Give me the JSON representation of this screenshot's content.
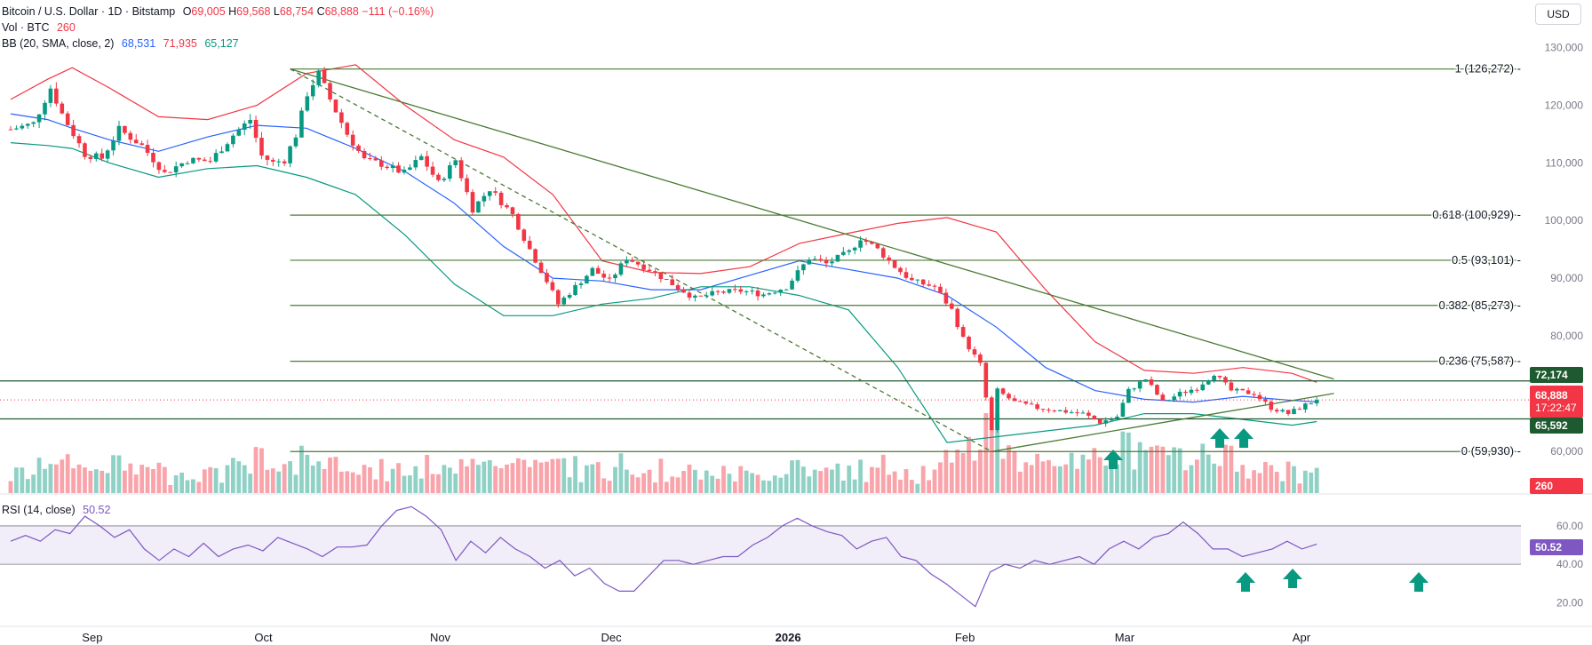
{
  "header": {
    "symbol": "Bitcoin / U.S. Dollar · 1D · Bitstamp",
    "o_label": "O",
    "o": "69,005",
    "h_label": "H",
    "h": "69,568",
    "l_label": "L",
    "l": "68,754",
    "c_label": "C",
    "c": "68,888",
    "change": "−111 (−0.16%)",
    "vol_label": "Vol · BTC",
    "vol": "260",
    "bb_label": "BB (20, SMA, close, 2)",
    "bb_basis": "68,531",
    "bb_upper": "71,935",
    "bb_lower": "65,127",
    "rsi_label": "RSI (14, close)",
    "rsi": "50.52"
  },
  "currency_button": "USD",
  "price_tags": {
    "resistance": "72,174",
    "last": "68,888",
    "countdown": "17:22:47",
    "support": "65,592",
    "volume": "260",
    "rsi": "50.52"
  },
  "colors": {
    "up": "#089981",
    "down": "#f23645",
    "basis": "#2962ff",
    "band": "#f23645",
    "lower": "#089981",
    "fib": "#4c7a34",
    "rsi": "#7e57c2",
    "support_tag": "#1e5a2f"
  },
  "chart_data": {
    "type": "candlestick",
    "price_axis": {
      "ticks": [
        60000,
        70000,
        80000,
        90000,
        100000,
        110000,
        120000,
        130000
      ],
      "tick_labels": [
        "60,000",
        "70,000",
        "80,000",
        "90,000",
        "100,000",
        "110,000",
        "120,000",
        "130,000"
      ],
      "range": [
        55500,
        133000
      ]
    },
    "time_axis": {
      "labels": [
        "Sep",
        "Oct",
        "Nov",
        "Dec",
        "2026",
        "Feb",
        "Mar",
        "Apr"
      ]
    },
    "fib_levels": [
      {
        "label": "1 (126,272)",
        "value": 126272
      },
      {
        "label": "0.618 (100,929)",
        "value": 100929
      },
      {
        "label": "0.5 (93,101)",
        "value": 93101
      },
      {
        "label": "0.382 (85,273)",
        "value": 85273
      },
      {
        "label": "0.236 (75,587)",
        "value": 75587
      },
      {
        "label": "0 (59,930)",
        "value": 59930
      }
    ],
    "horizontal_levels": [
      72174,
      65592
    ],
    "last_price": 68888,
    "close_path": [
      [
        "Aug 18",
        115800
      ],
      [
        "Aug 22",
        116800
      ],
      [
        "Aug 25",
        123000
      ],
      [
        "Aug 27",
        118500
      ],
      [
        "Aug 31",
        111500
      ],
      [
        "Sep 3",
        110800
      ],
      [
        "Sep 6",
        115800
      ],
      [
        "Sep 10",
        113000
      ],
      [
        "Sep 14",
        108200
      ],
      [
        "Sep 18",
        110500
      ],
      [
        "Sep 22",
        110300
      ],
      [
        "Sep 26",
        114800
      ],
      [
        "Sep 29",
        117500
      ],
      [
        "Oct 1",
        111200
      ],
      [
        "Oct 3",
        110000
      ],
      [
        "Oct 5",
        110500
      ],
      [
        "Oct 7",
        114800
      ],
      [
        "Oct 9",
        122000
      ],
      [
        "Oct 11",
        125500
      ],
      [
        "Oct 13",
        121000
      ],
      [
        "Oct 16",
        115000
      ],
      [
        "Oct 19",
        110500
      ],
      [
        "Oct 22",
        109800
      ],
      [
        "Oct 26",
        108200
      ],
      [
        "Oct 29",
        111000
      ],
      [
        "Nov 1",
        106500
      ],
      [
        "Nov 4",
        110500
      ],
      [
        "Nov 7",
        102000
      ],
      [
        "Nov 10",
        105500
      ],
      [
        "Nov 14",
        101000
      ],
      [
        "Nov 17",
        95000
      ],
      [
        "Nov 20",
        89500
      ],
      [
        "Nov 22",
        85500
      ],
      [
        "Nov 25",
        88500
      ],
      [
        "Nov 28",
        91500
      ],
      [
        "Dec 1",
        89500
      ],
      [
        "Dec 4",
        93500
      ],
      [
        "Dec 8",
        91500
      ],
      [
        "Dec 12",
        89000
      ],
      [
        "Dec 16",
        86500
      ],
      [
        "Dec 20",
        87500
      ],
      [
        "Dec 24",
        87800
      ],
      [
        "Dec 28",
        87200
      ],
      [
        "Jan 1",
        88500
      ],
      [
        "Jan 5",
        93500
      ],
      [
        "Jan 8",
        92500
      ],
      [
        "Jan 12",
        94500
      ],
      [
        "Jan 14",
        97000
      ],
      [
        "Jan 17",
        95000
      ],
      [
        "Jan 20",
        92000
      ],
      [
        "Jan 23",
        89500
      ],
      [
        "Jan 27",
        88500
      ],
      [
        "Jan 30",
        84500
      ],
      [
        "Feb 1",
        79500
      ],
      [
        "Feb 4",
        75000
      ],
      [
        "Feb 6",
        63500
      ],
      [
        "Feb 7",
        70500
      ],
      [
        "Feb 10",
        68500
      ],
      [
        "Feb 14",
        67500
      ],
      [
        "Feb 18",
        67000
      ],
      [
        "Feb 22",
        66500
      ],
      [
        "Feb 25",
        65000
      ],
      [
        "Feb 28",
        66000
      ],
      [
        "Mar 2",
        70500
      ],
      [
        "Mar 5",
        72500
      ],
      [
        "Mar 8",
        68500
      ],
      [
        "Mar 11",
        70000
      ],
      [
        "Mar 14",
        71000
      ],
      [
        "Mar 17",
        73500
      ],
      [
        "Mar 20",
        70500
      ],
      [
        "Mar 24",
        70000
      ],
      [
        "Mar 27",
        67500
      ],
      [
        "Mar 30",
        66500
      ],
      [
        "Apr 2",
        68000
      ],
      [
        "Apr 4",
        68888
      ]
    ],
    "bollinger": {
      "upper": [
        [
          0,
          121000
        ],
        [
          15,
          124500
        ],
        [
          25,
          126500
        ],
        [
          40,
          123000
        ],
        [
          60,
          118000
        ],
        [
          80,
          117500
        ],
        [
          100,
          120000
        ],
        [
          120,
          125500
        ],
        [
          140,
          127000
        ],
        [
          160,
          120000
        ],
        [
          180,
          114000
        ],
        [
          200,
          111000
        ],
        [
          220,
          104500
        ],
        [
          240,
          93000
        ],
        [
          260,
          91000
        ],
        [
          280,
          90800
        ],
        [
          300,
          92000
        ],
        [
          320,
          96000
        ],
        [
          340,
          97800
        ],
        [
          360,
          99500
        ],
        [
          380,
          100500
        ],
        [
          400,
          98000
        ],
        [
          420,
          88000
        ],
        [
          440,
          79000
        ],
        [
          460,
          74000
        ],
        [
          480,
          73500
        ],
        [
          500,
          74500
        ],
        [
          520,
          73500
        ],
        [
          530,
          71935
        ]
      ],
      "basis": [
        [
          0,
          118500
        ],
        [
          15,
          117500
        ],
        [
          25,
          116000
        ],
        [
          40,
          114000
        ],
        [
          60,
          112000
        ],
        [
          80,
          114500
        ],
        [
          100,
          116500
        ],
        [
          120,
          116000
        ],
        [
          140,
          112500
        ],
        [
          160,
          108500
        ],
        [
          180,
          103000
        ],
        [
          200,
          95500
        ],
        [
          220,
          90000
        ],
        [
          240,
          89500
        ],
        [
          260,
          88000
        ],
        [
          280,
          88000
        ],
        [
          300,
          90500
        ],
        [
          320,
          93000
        ],
        [
          340,
          91500
        ],
        [
          360,
          90000
        ],
        [
          380,
          87000
        ],
        [
          400,
          81500
        ],
        [
          420,
          74500
        ],
        [
          440,
          70500
        ],
        [
          460,
          69000
        ],
        [
          480,
          68500
        ],
        [
          500,
          69500
        ],
        [
          520,
          68800
        ],
        [
          530,
          68531
        ]
      ],
      "lower": [
        [
          0,
          113500
        ],
        [
          15,
          113000
        ],
        [
          25,
          112500
        ],
        [
          40,
          110000
        ],
        [
          60,
          107500
        ],
        [
          80,
          109000
        ],
        [
          100,
          109500
        ],
        [
          120,
          107500
        ],
        [
          140,
          104500
        ],
        [
          160,
          97500
        ],
        [
          180,
          89000
        ],
        [
          200,
          83500
        ],
        [
          220,
          83500
        ],
        [
          240,
          85500
        ],
        [
          260,
          86500
        ],
        [
          280,
          88500
        ],
        [
          300,
          88500
        ],
        [
          320,
          87000
        ],
        [
          340,
          84500
        ],
        [
          360,
          74500
        ],
        [
          380,
          61500
        ],
        [
          400,
          62500
        ],
        [
          420,
          63500
        ],
        [
          440,
          64500
        ],
        [
          460,
          66500
        ],
        [
          480,
          66500
        ],
        [
          500,
          65500
        ],
        [
          520,
          64500
        ],
        [
          530,
          65127
        ]
      ]
    },
    "trendlines": [
      {
        "style": "solid",
        "from": [
          126272,
          "Oct 6"
        ],
        "to": [
          72500,
          "Apr 7"
        ]
      },
      {
        "style": "dashed",
        "from": [
          126272,
          "Oct 6"
        ],
        "to": [
          59930,
          "Feb 6"
        ]
      },
      {
        "style": "solid",
        "from": [
          59930,
          "Feb 6"
        ],
        "to": [
          70000,
          "Apr 7"
        ]
      }
    ],
    "rsi": {
      "levels": [
        60,
        40
      ],
      "tick_labels": [
        "60.00",
        "40.00",
        "20.00"
      ],
      "range": [
        10,
        72
      ],
      "path": [
        [
          0,
          52
        ],
        [
          10,
          55
        ],
        [
          20,
          52
        ],
        [
          30,
          58
        ],
        [
          40,
          56
        ],
        [
          50,
          65
        ],
        [
          60,
          60
        ],
        [
          70,
          54
        ],
        [
          80,
          58
        ],
        [
          90,
          48
        ],
        [
          100,
          42
        ],
        [
          110,
          48
        ],
        [
          120,
          44
        ],
        [
          130,
          51
        ],
        [
          140,
          44
        ],
        [
          150,
          48
        ],
        [
          160,
          50
        ],
        [
          170,
          47
        ],
        [
          180,
          54
        ],
        [
          190,
          51
        ],
        [
          200,
          48
        ],
        [
          210,
          44
        ],
        [
          220,
          49
        ],
        [
          230,
          49
        ],
        [
          240,
          50
        ],
        [
          250,
          60
        ],
        [
          260,
          68
        ],
        [
          270,
          70
        ],
        [
          280,
          65
        ],
        [
          290,
          58
        ],
        [
          300,
          42
        ],
        [
          310,
          52
        ],
        [
          320,
          46
        ],
        [
          330,
          54
        ],
        [
          340,
          48
        ],
        [
          350,
          44
        ],
        [
          360,
          38
        ],
        [
          370,
          42
        ],
        [
          380,
          34
        ],
        [
          390,
          38
        ],
        [
          400,
          30
        ],
        [
          410,
          26
        ],
        [
          420,
          26
        ],
        [
          430,
          34
        ],
        [
          440,
          42
        ],
        [
          450,
          42
        ],
        [
          460,
          40
        ],
        [
          470,
          42
        ],
        [
          480,
          44
        ],
        [
          490,
          44
        ],
        [
          500,
          50
        ],
        [
          510,
          54
        ],
        [
          520,
          60
        ],
        [
          530,
          64
        ],
        [
          540,
          60
        ],
        [
          550,
          57
        ],
        [
          560,
          55
        ],
        [
          570,
          48
        ],
        [
          580,
          52
        ],
        [
          590,
          54
        ],
        [
          600,
          44
        ],
        [
          610,
          42
        ],
        [
          620,
          35
        ],
        [
          630,
          30
        ],
        [
          640,
          24
        ],
        [
          650,
          18
        ],
        [
          660,
          36
        ],
        [
          670,
          40
        ],
        [
          680,
          38
        ],
        [
          690,
          42
        ],
        [
          700,
          40
        ],
        [
          710,
          42
        ],
        [
          720,
          44
        ],
        [
          730,
          40
        ],
        [
          740,
          48
        ],
        [
          750,
          52
        ],
        [
          760,
          48
        ],
        [
          770,
          54
        ],
        [
          780,
          56
        ],
        [
          790,
          62
        ],
        [
          800,
          56
        ],
        [
          810,
          48
        ],
        [
          820,
          48
        ],
        [
          830,
          44
        ],
        [
          840,
          46
        ],
        [
          850,
          48
        ],
        [
          860,
          52
        ],
        [
          870,
          48
        ],
        [
          880,
          50.52
        ]
      ]
    },
    "volume": {
      "last": 260
    }
  }
}
